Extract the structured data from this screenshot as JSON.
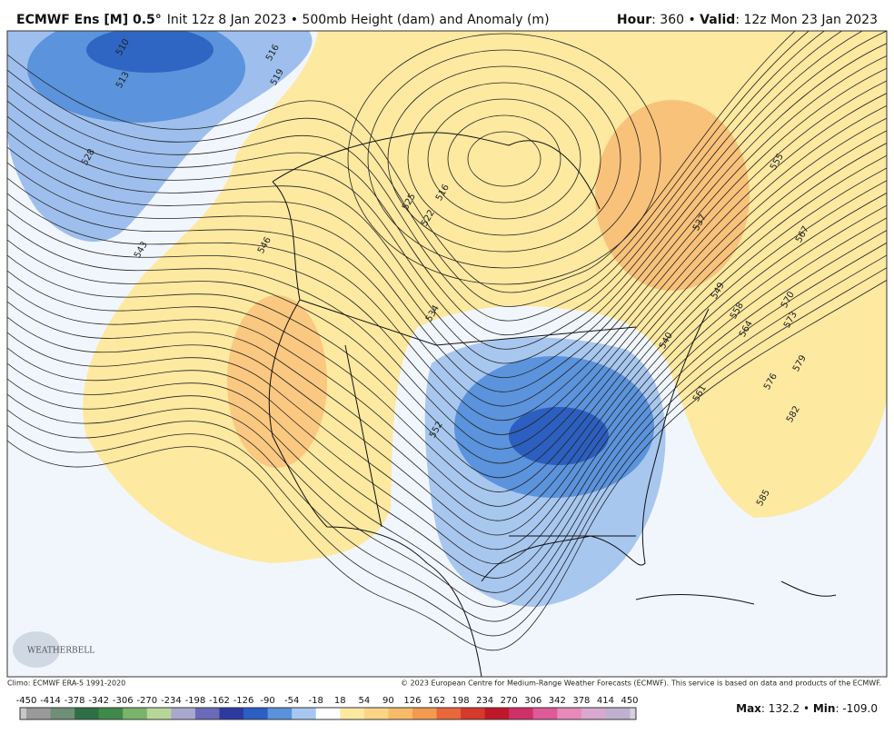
{
  "header": {
    "model": "ECMWF Ens [M] 0.5°",
    "title": "Init 12z 8 Jan 2023 • 500mb Height (dam) and Anomaly (m)",
    "hour_label": "Hour",
    "hour_value": ": 360 • ",
    "valid_label": "Valid",
    "valid_value": ": 12z Mon 23 Jan 2023"
  },
  "map": {
    "contour_labels": [
      "510",
      "513",
      "516",
      "519",
      "528",
      "543",
      "546",
      "525",
      "516",
      "522",
      "534",
      "552",
      "537",
      "549",
      "540",
      "561",
      "555",
      "567",
      "558",
      "564",
      "570",
      "573",
      "576",
      "579",
      "582",
      "585"
    ],
    "logo": "WEATHERBELL"
  },
  "footer": {
    "climo": "Climo: ECMWF ERA-5 1991-2020",
    "copyright": "© 2023 European Centre for Medium-Range Weather Forecasts (ECMWF). This service is based on data and products of the ECMWF.",
    "colorbar_labels": [
      -450,
      -414,
      -378,
      -342,
      -306,
      -270,
      -234,
      -198,
      -162,
      -126,
      -90,
      -54,
      -18,
      18,
      54,
      90,
      126,
      162,
      198,
      234,
      270,
      306,
      342,
      378,
      414,
      450
    ],
    "max_label": "Max",
    "max_value": ": 132.2 • ",
    "min_label": "Min",
    "min_value": ": -109.0"
  }
}
